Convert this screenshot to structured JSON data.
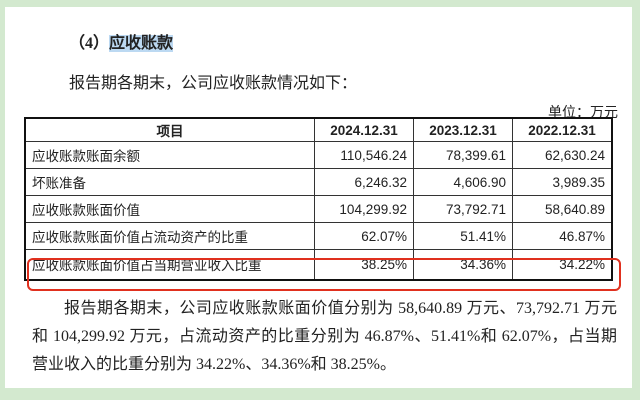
{
  "heading": {
    "prefix": "（4）",
    "title": "应收账款"
  },
  "intro": "报告期各期末，公司应收账款情况如下：",
  "unit": "单位：万元",
  "table": {
    "headers": [
      "项目",
      "2024.12.31",
      "2023.12.31",
      "2022.12.31"
    ],
    "rows": [
      {
        "label": "应收账款账面余额",
        "values": [
          "110,546.24",
          "78,399.61",
          "62,630.24"
        ]
      },
      {
        "label": "坏账准备",
        "values": [
          "6,246.32",
          "4,606.90",
          "3,989.35"
        ]
      },
      {
        "label": "应收账款账面价值",
        "values": [
          "104,299.92",
          "73,792.71",
          "58,640.89"
        ]
      },
      {
        "label": "应收账款账面价值占流动资产的比重",
        "values": [
          "62.07%",
          "51.41%",
          "46.87%"
        ]
      },
      {
        "label": "应收账款账面价值占当期营业收入比重",
        "values": [
          "38.25%",
          "34.36%",
          "34.22%"
        ]
      }
    ]
  },
  "highlight_color": "#e0301e",
  "paragraph": "报告期各期末，公司应收账款账面价值分别为 58,640.89 万元、73,792.71 万元和 104,299.92 万元，占流动资产的比重分别为 46.87%、51.41%和 62.07%，占当期营业收入的比重分别为 34.22%、34.36%和 38.25%。"
}
